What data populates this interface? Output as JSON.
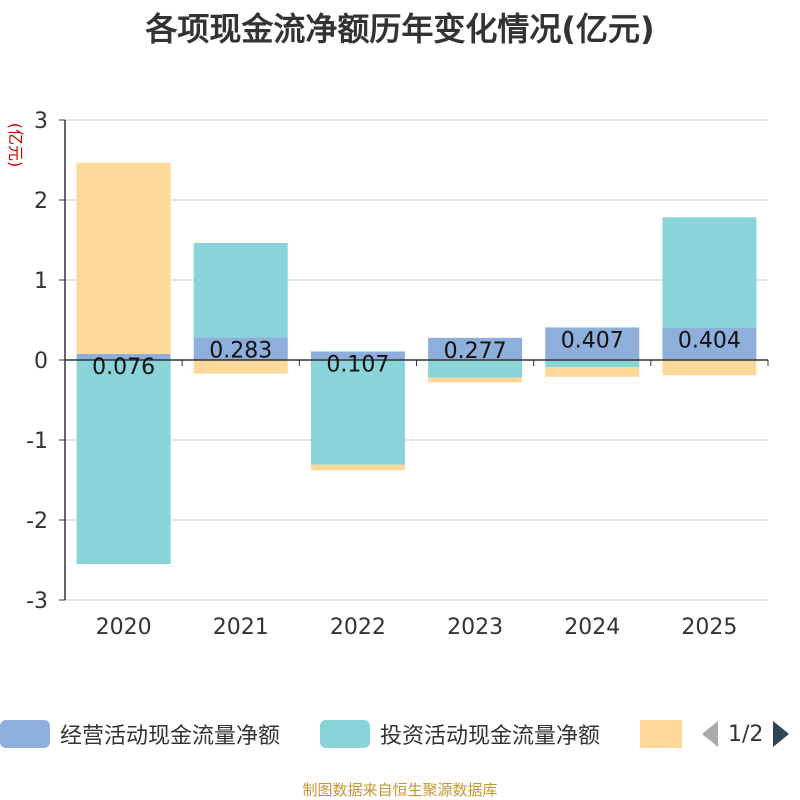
{
  "chart_data": {
    "type": "bar",
    "stacked": true,
    "title": "各项现金流净额历年变化情况(亿元)",
    "ylabel": "(亿元)",
    "xlabel": "",
    "ylim": [
      -3,
      3
    ],
    "yticks": [
      3,
      2,
      1,
      0,
      -1,
      -2,
      -3
    ],
    "categories": [
      "2020",
      "2021",
      "2022",
      "2023",
      "2024",
      "2025"
    ],
    "series": [
      {
        "name": "经营活动现金流量净额",
        "color": "#8eaedb",
        "values": [
          0.076,
          0.283,
          0.107,
          0.277,
          0.407,
          0.404
        ],
        "labels": [
          "0.076",
          "0.283",
          "0.107",
          "0.277",
          "0.407",
          "0.404"
        ]
      },
      {
        "name": "投资活动现金流量净额",
        "color": "#88d4d8",
        "values": [
          -2.55,
          1.18,
          -1.31,
          -0.22,
          -0.09,
          1.38
        ]
      },
      {
        "name": "",
        "color": "#fdd899",
        "values": [
          2.39,
          -0.17,
          -0.07,
          -0.06,
          -0.12,
          -0.19
        ]
      }
    ]
  },
  "legend": {
    "items": [
      {
        "label": "经营活动现金流量净额",
        "color": "#8eaedb"
      },
      {
        "label": "投资活动现金流量净额",
        "color": "#88d4d8"
      },
      {
        "label": "",
        "color": "#fdd899"
      }
    ],
    "page_text": "1/2"
  },
  "footer": "制图数据来自恒生聚源数据库"
}
